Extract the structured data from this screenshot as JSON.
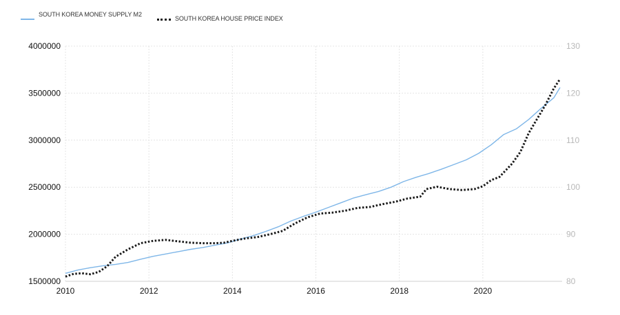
{
  "chart_data": {
    "type": "line",
    "title": "",
    "xlabel": "",
    "ylabel": "",
    "x_ticks": [
      "2010",
      "2012",
      "2014",
      "2016",
      "2018",
      "2020"
    ],
    "x_range": [
      2010,
      2021.9
    ],
    "y_left": {
      "range": [
        1500000,
        4000000
      ],
      "ticks": [
        "1500000",
        "2000000",
        "2500000",
        "3000000",
        "3500000",
        "4000000"
      ]
    },
    "y_right": {
      "range": [
        80,
        130
      ],
      "ticks": [
        "80",
        "90",
        "100",
        "110",
        "120",
        "130"
      ]
    },
    "grid": true,
    "legend_position": "top-left",
    "series": [
      {
        "name": "SOUTH KOREA MONEY SUPPLY M2",
        "axis": "left",
        "color": "#7eb6e8",
        "style": "solid",
        "points": [
          [
            2010.0,
            1585000
          ],
          [
            2010.3,
            1620000
          ],
          [
            2010.6,
            1645000
          ],
          [
            2010.9,
            1665000
          ],
          [
            2011.2,
            1680000
          ],
          [
            2011.5,
            1700000
          ],
          [
            2011.8,
            1735000
          ],
          [
            2012.1,
            1765000
          ],
          [
            2012.4,
            1790000
          ],
          [
            2012.7,
            1815000
          ],
          [
            2013.0,
            1840000
          ],
          [
            2013.3,
            1860000
          ],
          [
            2013.6,
            1885000
          ],
          [
            2013.9,
            1910000
          ],
          [
            2014.2,
            1950000
          ],
          [
            2014.5,
            1985000
          ],
          [
            2014.8,
            2030000
          ],
          [
            2015.1,
            2080000
          ],
          [
            2015.4,
            2140000
          ],
          [
            2015.7,
            2190000
          ],
          [
            2016.0,
            2235000
          ],
          [
            2016.3,
            2285000
          ],
          [
            2016.6,
            2335000
          ],
          [
            2016.9,
            2385000
          ],
          [
            2017.2,
            2420000
          ],
          [
            2017.5,
            2455000
          ],
          [
            2017.8,
            2500000
          ],
          [
            2018.1,
            2560000
          ],
          [
            2018.4,
            2605000
          ],
          [
            2018.7,
            2645000
          ],
          [
            2019.0,
            2690000
          ],
          [
            2019.3,
            2740000
          ],
          [
            2019.6,
            2790000
          ],
          [
            2019.9,
            2860000
          ],
          [
            2020.2,
            2950000
          ],
          [
            2020.5,
            3060000
          ],
          [
            2020.8,
            3120000
          ],
          [
            2021.1,
            3220000
          ],
          [
            2021.4,
            3340000
          ],
          [
            2021.7,
            3450000
          ],
          [
            2021.85,
            3560000
          ]
        ]
      },
      {
        "name": "SOUTH KOREA HOUSE PRICE INDEX",
        "axis": "right",
        "color": "#1a1a1a",
        "style": "dotted",
        "points": [
          [
            2010.0,
            81.0
          ],
          [
            2010.2,
            81.6
          ],
          [
            2010.4,
            81.7
          ],
          [
            2010.6,
            81.5
          ],
          [
            2010.8,
            82.0
          ],
          [
            2011.0,
            83.2
          ],
          [
            2011.2,
            85.2
          ],
          [
            2011.5,
            86.8
          ],
          [
            2011.8,
            88.1
          ],
          [
            2012.1,
            88.6
          ],
          [
            2012.4,
            88.8
          ],
          [
            2012.7,
            88.5
          ],
          [
            2013.0,
            88.2
          ],
          [
            2013.3,
            88.1
          ],
          [
            2013.6,
            88.1
          ],
          [
            2013.8,
            88.2
          ],
          [
            2014.0,
            88.6
          ],
          [
            2014.3,
            89.1
          ],
          [
            2014.6,
            89.4
          ],
          [
            2014.9,
            90.0
          ],
          [
            2015.2,
            90.7
          ],
          [
            2015.5,
            92.3
          ],
          [
            2015.8,
            93.6
          ],
          [
            2016.1,
            94.4
          ],
          [
            2016.4,
            94.6
          ],
          [
            2016.7,
            95.0
          ],
          [
            2017.0,
            95.6
          ],
          [
            2017.3,
            95.8
          ],
          [
            2017.6,
            96.4
          ],
          [
            2017.9,
            96.9
          ],
          [
            2018.2,
            97.6
          ],
          [
            2018.5,
            98.0
          ],
          [
            2018.65,
            99.6
          ],
          [
            2018.9,
            100.1
          ],
          [
            2019.2,
            99.6
          ],
          [
            2019.5,
            99.4
          ],
          [
            2019.8,
            99.6
          ],
          [
            2020.0,
            100.2
          ],
          [
            2020.2,
            101.5
          ],
          [
            2020.4,
            102.2
          ],
          [
            2020.7,
            105.0
          ],
          [
            2020.9,
            107.5
          ],
          [
            2021.1,
            111.5
          ],
          [
            2021.3,
            114.5
          ],
          [
            2021.5,
            117.5
          ],
          [
            2021.7,
            121.0
          ],
          [
            2021.85,
            123.0
          ]
        ]
      }
    ]
  }
}
